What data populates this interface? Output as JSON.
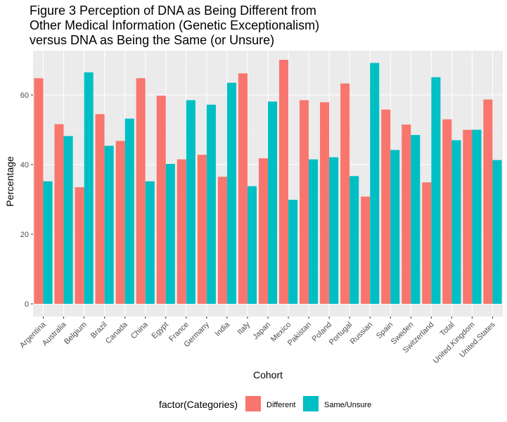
{
  "title_lines": [
    "Figure 3 Perception of DNA as Being Different from",
    "Other Medical Information (Genetic Exceptionalism)",
    "versus DNA as Being the Same (or Unsure)"
  ],
  "chart_data": {
    "type": "bar",
    "xlabel": "Cohort",
    "ylabel": "Percentage",
    "ylim": [
      0,
      72
    ],
    "yticks": [
      0,
      20,
      40,
      60
    ],
    "grid": true,
    "legend_position": "bottom",
    "legend_title": "factor(Categories)",
    "categories": [
      "Argentina",
      "Australia",
      "Belgium",
      "Brazil",
      "Canada",
      "China",
      "Egypt",
      "France",
      "Germany",
      "India",
      "Italy",
      "Japan",
      "Mexico",
      "Pakistan",
      "Poland",
      "Portugal",
      "Russian",
      "Spain",
      "Sweden",
      "Switzerland",
      "Total",
      "United.Kingdom",
      "United.States"
    ],
    "series": [
      {
        "name": "Different",
        "color": "#F8766D",
        "values": [
          64.8,
          51.6,
          33.5,
          54.5,
          46.8,
          64.8,
          59.8,
          41.5,
          42.8,
          36.5,
          66.2,
          41.8,
          70.1,
          58.5,
          57.9,
          63.3,
          30.8,
          55.8,
          51.5,
          34.9,
          53.0,
          50.0,
          58.7
        ]
      },
      {
        "name": "Same/Unsure",
        "color": "#00BFC4",
        "values": [
          35.2,
          48.2,
          66.5,
          45.4,
          53.2,
          35.2,
          40.2,
          58.5,
          57.2,
          63.5,
          33.8,
          58.1,
          29.9,
          41.5,
          42.1,
          36.7,
          69.2,
          44.2,
          48.5,
          65.1,
          47.0,
          50.0,
          41.3
        ]
      }
    ]
  }
}
